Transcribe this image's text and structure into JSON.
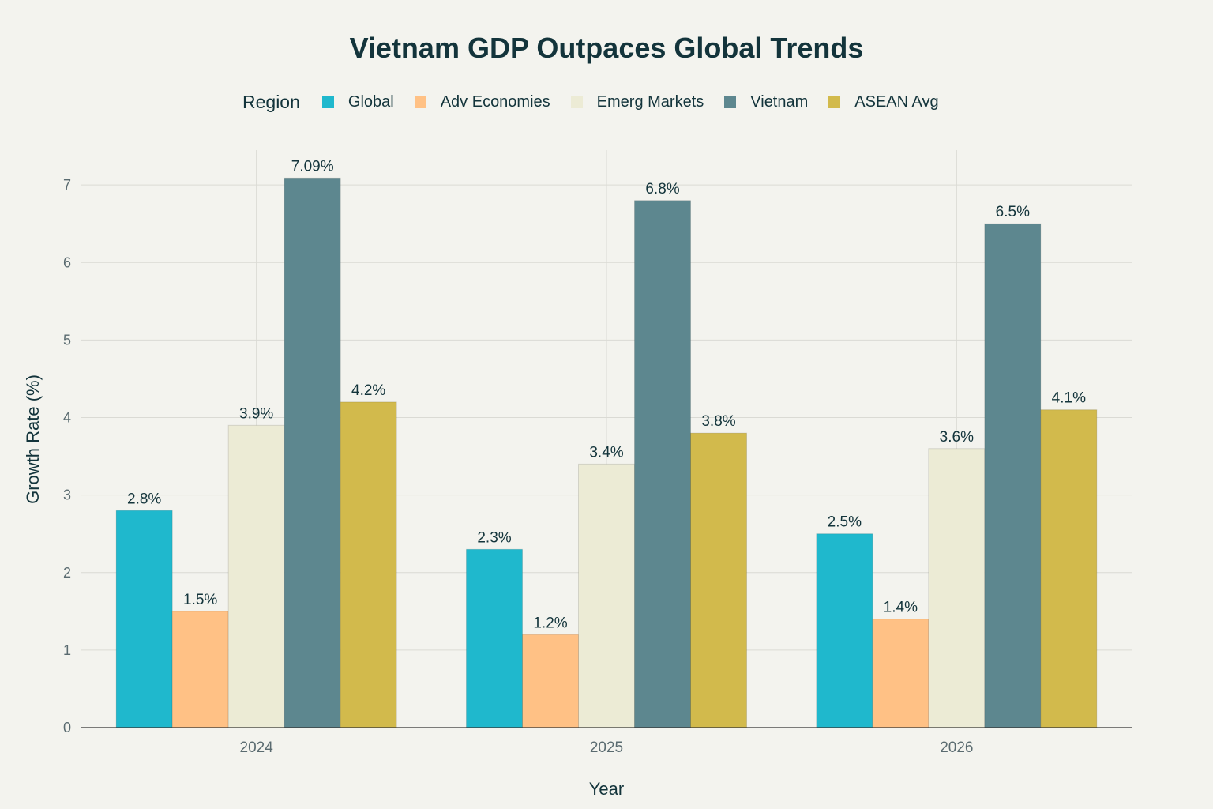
{
  "chart_data": {
    "type": "bar",
    "title": "Vietnam GDP Outpaces Global Trends",
    "xlabel": "Year",
    "ylabel": "Growth Rate (%)",
    "ylim": [
      0,
      7.45
    ],
    "yticks": [
      "0",
      "1",
      "2",
      "3",
      "4",
      "5",
      "6",
      "7"
    ],
    "grid": true,
    "legend_title": "Region",
    "legend_placement": "top",
    "categories": [
      "2024",
      "2025",
      "2026"
    ],
    "series": [
      {
        "name": "Global",
        "color": "#1FB8CD",
        "values": [
          2.8,
          2.3,
          2.5
        ],
        "labels": [
          "2.8%",
          "2.3%",
          "2.5%"
        ]
      },
      {
        "name": "Adv Economies",
        "color": "#FFC185",
        "values": [
          1.5,
          1.2,
          1.4
        ],
        "labels": [
          "1.5%",
          "1.2%",
          "1.4%"
        ]
      },
      {
        "name": "Emerg Markets",
        "color": "#ECEBD5",
        "values": [
          3.9,
          3.4,
          3.6
        ],
        "labels": [
          "3.9%",
          "3.4%",
          "3.6%"
        ]
      },
      {
        "name": "Vietnam",
        "color": "#5D878F",
        "values": [
          7.09,
          6.8,
          6.5
        ],
        "labels": [
          "7.09%",
          "6.8%",
          "6.5%"
        ]
      },
      {
        "name": "ASEAN Avg",
        "color": "#D2BA4C",
        "values": [
          4.2,
          3.8,
          4.1
        ],
        "labels": [
          "4.2%",
          "3.8%",
          "4.1%"
        ]
      }
    ]
  }
}
